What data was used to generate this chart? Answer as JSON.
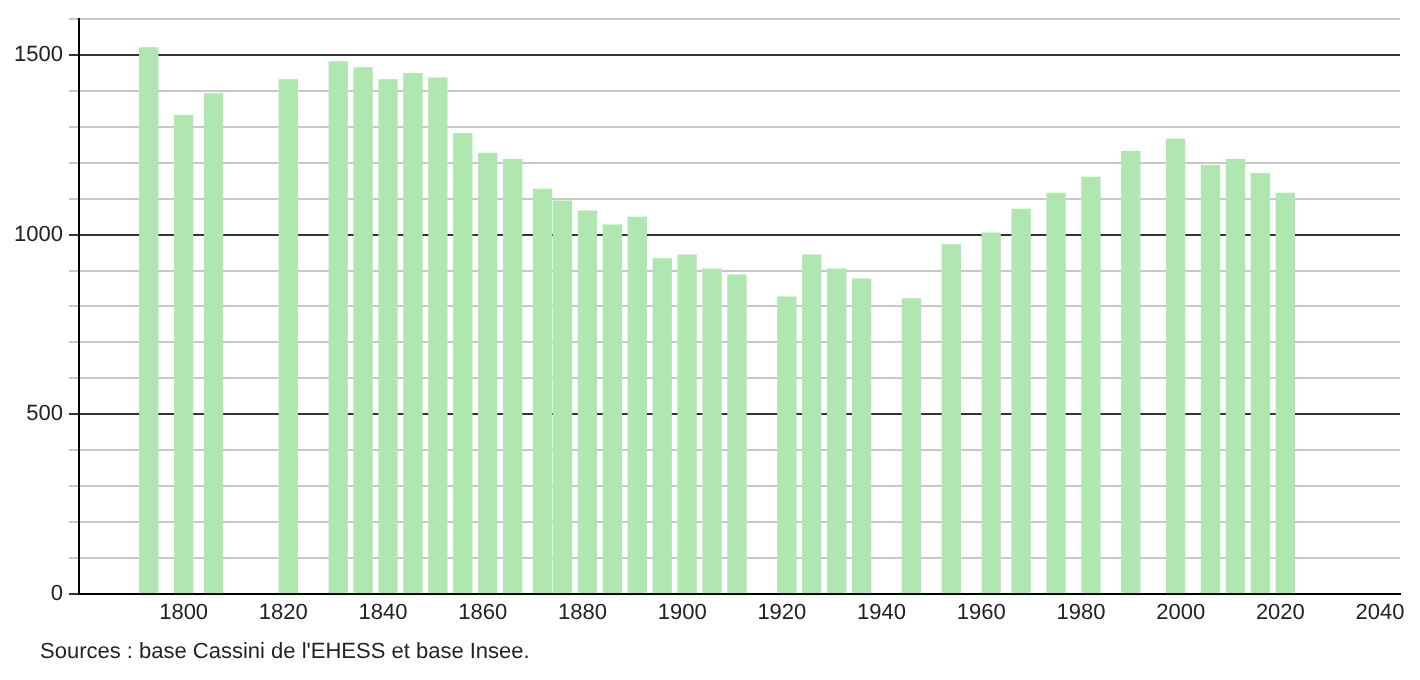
{
  "chart_data": {
    "type": "bar",
    "color": "#b0e6b0",
    "x": [
      1793,
      1800,
      1806,
      1821,
      1831,
      1836,
      1841,
      1846,
      1851,
      1856,
      1861,
      1866,
      1872,
      1876,
      1881,
      1886,
      1891,
      1896,
      1901,
      1906,
      1911,
      1921,
      1926,
      1931,
      1936,
      1946,
      1954,
      1962,
      1968,
      1975,
      1982,
      1990,
      1999,
      2006,
      2011,
      2016,
      2021
    ],
    "values": [
      1520,
      1331,
      1392,
      1431,
      1481,
      1464,
      1431,
      1448,
      1436,
      1281,
      1226,
      1209,
      1126,
      1093,
      1065,
      1026,
      1048,
      932,
      943,
      904,
      887,
      826,
      943,
      904,
      876,
      821,
      971,
      1004,
      1070,
      1115,
      1159,
      1231,
      1265,
      1192,
      1209,
      1170,
      1115
    ],
    "xlim": [
      1779,
      2044
    ],
    "xticks": [
      1800,
      1820,
      1840,
      1860,
      1880,
      1900,
      1920,
      1940,
      1960,
      1980,
      2000,
      2020,
      2040
    ],
    "ylim": [
      0,
      1600
    ],
    "yticks": [
      0,
      {
        "value": 100,
        "label": null
      },
      {
        "value": 200,
        "label": null
      },
      {
        "value": 300,
        "label": null
      },
      {
        "value": 400,
        "label": null
      },
      500,
      {
        "value": 600,
        "label": null
      },
      {
        "value": 700,
        "label": null
      },
      {
        "value": 800,
        "label": null
      },
      {
        "value": 900,
        "label": null
      },
      1000,
      {
        "value": 1100,
        "label": null
      },
      {
        "value": 1200,
        "label": null
      },
      {
        "value": 1300,
        "label": null
      },
      {
        "value": 1400,
        "label": null
      },
      1500,
      {
        "value": 1600,
        "label": null
      }
    ],
    "grid": "y",
    "legend": false,
    "annotations": [
      "Sources : base Cassini de l'EHESS et base Insee."
    ]
  }
}
